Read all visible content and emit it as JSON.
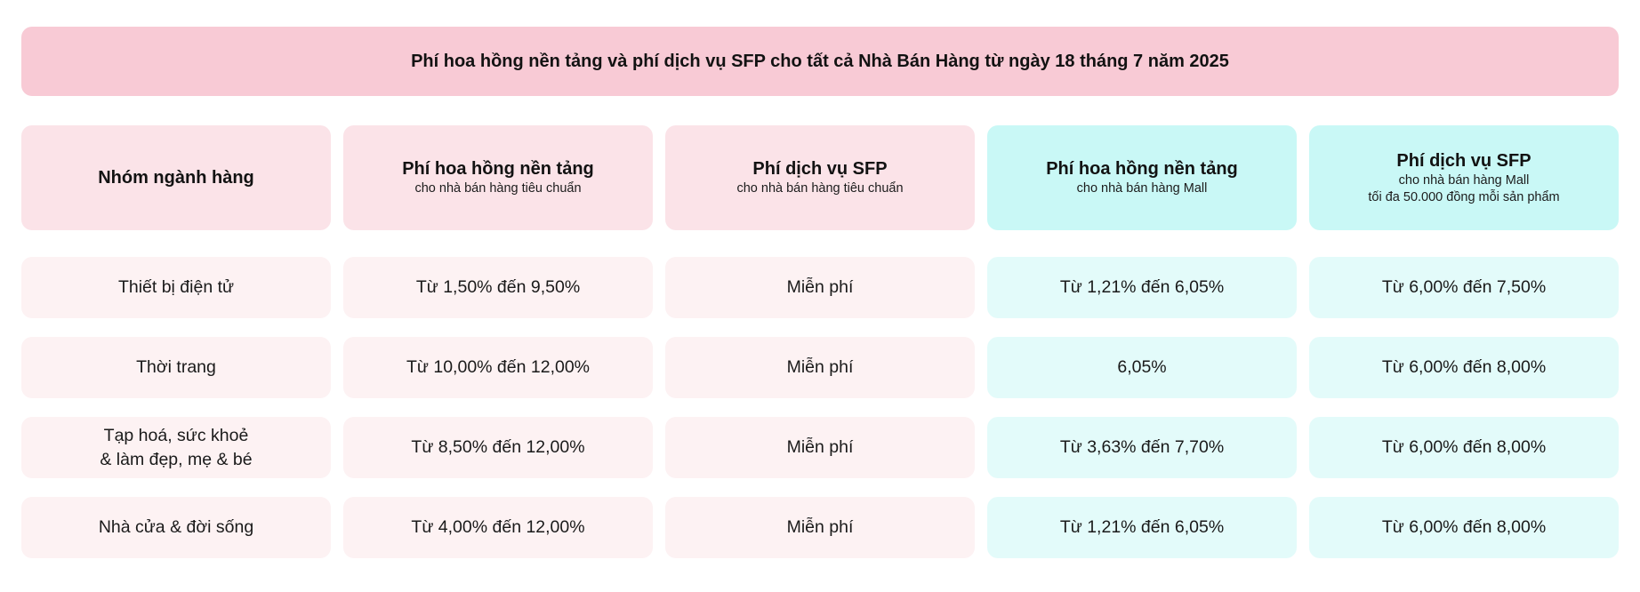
{
  "banner": {
    "title": "Phí hoa hồng nền tảng và phí dịch vụ SFP cho tất cả Nhà Bán Hàng từ ngày 18 tháng 7 năm 2025"
  },
  "colors": {
    "banner_pink": "#f8cad5",
    "header_pink": "#fbe3e8",
    "header_teal": "#c9f8f6",
    "row_pink": "#fdf2f3",
    "row_teal": "#e3fbfa",
    "text": "#141414"
  },
  "table": {
    "columns": [
      {
        "title": "Nhóm ngành hàng",
        "subtitle": "",
        "subtitle2": "",
        "theme": "pink"
      },
      {
        "title": "Phí hoa hồng nền tảng",
        "subtitle": "cho nhà bán hàng tiêu chuẩn",
        "subtitle2": "",
        "theme": "pink"
      },
      {
        "title": "Phí dịch vụ SFP",
        "subtitle": "cho nhà bán hàng tiêu chuẩn",
        "subtitle2": "",
        "theme": "pink"
      },
      {
        "title": "Phí hoa hồng nền tảng",
        "subtitle": "cho nhà bán hàng Mall",
        "subtitle2": "",
        "theme": "teal"
      },
      {
        "title": "Phí dịch vụ SFP",
        "subtitle": "cho nhà bán hàng Mall",
        "subtitle2": "tối đa 50.000 đồng mỗi sản phẩm",
        "theme": "teal"
      }
    ],
    "rows": [
      {
        "category": "Thiết bị điện tử",
        "cells": [
          "Từ 1,50% đến 9,50%",
          "Miễn phí",
          "Từ 1,21% đến 6,05%",
          "Từ 6,00% đến 7,50%"
        ]
      },
      {
        "category": "Thời trang",
        "cells": [
          "Từ 10,00% đến 12,00%",
          "Miễn phí",
          "6,05%",
          "Từ 6,00% đến 8,00%"
        ]
      },
      {
        "category": "Tạp hoá, sức khoẻ\n& làm đẹp, mẹ & bé",
        "cells": [
          "Từ 8,50% đến 12,00%",
          "Miễn phí",
          "Từ 3,63% đến 7,70%",
          "Từ 6,00% đến 8,00%"
        ]
      },
      {
        "category": "Nhà cửa & đời sống",
        "cells": [
          "Từ 4,00% đến 12,00%",
          "Miễn phí",
          "Từ 1,21% đến 6,05%",
          "Từ 6,00% đến 8,00%"
        ]
      }
    ]
  }
}
